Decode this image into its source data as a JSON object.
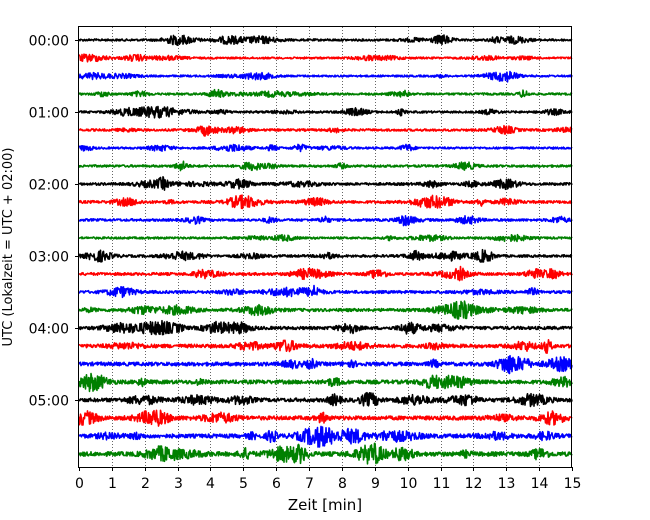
{
  "chart_data": {
    "type": "line",
    "title": "",
    "xlabel": "Zeit  [min]",
    "ylabel": "UTC (Lokalzeit = UTC + 02:00)",
    "xlim": [
      0,
      15
    ],
    "x_ticks": [
      "0",
      "1",
      "2",
      "3",
      "4",
      "5",
      "6",
      "7",
      "8",
      "9",
      "10",
      "11",
      "12",
      "13",
      "14",
      "15"
    ],
    "y_tick_labels": [
      "00:00",
      "01:00",
      "02:00",
      "03:00",
      "04:00",
      "05:00"
    ],
    "grid": "vertical-dotted",
    "trace_minutes": 15,
    "trace_colors": [
      "#000000",
      "#ff0000",
      "#0000ff",
      "#008000"
    ],
    "traces": [
      {
        "start": "00:00",
        "amplitude": 0.3
      },
      {
        "start": "00:15",
        "amplitude": 0.26
      },
      {
        "start": "00:30",
        "amplitude": 0.26
      },
      {
        "start": "00:45",
        "amplitude": 0.3
      },
      {
        "start": "01:00",
        "amplitude": 0.3
      },
      {
        "start": "01:15",
        "amplitude": 0.32
      },
      {
        "start": "01:30",
        "amplitude": 0.28
      },
      {
        "start": "01:45",
        "amplitude": 0.32
      },
      {
        "start": "02:00",
        "amplitude": 0.36
      },
      {
        "start": "02:15",
        "amplitude": 0.38
      },
      {
        "start": "02:30",
        "amplitude": 0.34
      },
      {
        "start": "02:45",
        "amplitude": 0.3
      },
      {
        "start": "03:00",
        "amplitude": 0.34
      },
      {
        "start": "03:15",
        "amplitude": 0.38
      },
      {
        "start": "03:30",
        "amplitude": 0.4
      },
      {
        "start": "03:45",
        "amplitude": 0.42
      },
      {
        "start": "04:00",
        "amplitude": 0.44
      },
      {
        "start": "04:15",
        "amplitude": 0.5
      },
      {
        "start": "04:30",
        "amplitude": 0.52
      },
      {
        "start": "04:45",
        "amplitude": 0.54
      },
      {
        "start": "05:00",
        "amplitude": 0.52
      },
      {
        "start": "05:15",
        "amplitude": 0.56
      },
      {
        "start": "05:30",
        "amplitude": 0.56
      },
      {
        "start": "05:45",
        "amplitude": 0.62
      }
    ]
  }
}
